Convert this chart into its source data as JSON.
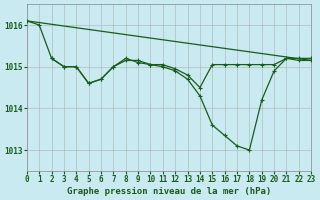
{
  "title": "Graphe pression niveau de la mer (hPa)",
  "background_color": "#c8eaf0",
  "grid_color": "#aaaaaa",
  "line_color": "#1a5c1a",
  "marker_color": "#1a5c1a",
  "xlim": [
    0,
    23
  ],
  "ylim": [
    1012.5,
    1016.5
  ],
  "yticks": [
    1013,
    1014,
    1015,
    1016
  ],
  "xticks": [
    0,
    1,
    2,
    3,
    4,
    5,
    6,
    7,
    8,
    9,
    10,
    11,
    12,
    13,
    14,
    15,
    16,
    17,
    18,
    19,
    20,
    21,
    22,
    23
  ],
  "series": [
    {
      "x": [
        0,
        1,
        2,
        3,
        4,
        5,
        6,
        7,
        8,
        9,
        10,
        11,
        12,
        13,
        14,
        15,
        16,
        17,
        18,
        19,
        20,
        21,
        22,
        23
      ],
      "y": [
        1016.1,
        1016.0,
        1015.2,
        1015.0,
        1015.0,
        1014.6,
        1014.7,
        1015.0,
        1015.2,
        1015.1,
        1015.05,
        1015.0,
        1014.9,
        1014.7,
        1014.3,
        1013.6,
        1013.35,
        1013.1,
        1013.0,
        1014.2,
        1014.9,
        1015.2,
        1015.2,
        1015.2
      ]
    },
    {
      "x": [
        2,
        3,
        4,
        5,
        6,
        7,
        8,
        9,
        10,
        11,
        12,
        13,
        14,
        15,
        16,
        17,
        18,
        19,
        20,
        21,
        22,
        23
      ],
      "y": [
        1015.2,
        1015.0,
        1015.0,
        1014.6,
        1014.7,
        1015.0,
        1015.15,
        1015.15,
        1015.05,
        1015.05,
        1014.95,
        1014.8,
        1014.5,
        1015.05,
        1015.05,
        1015.05,
        1015.05,
        1015.05,
        1015.05,
        1015.2,
        1015.15,
        1015.15
      ]
    },
    {
      "x": [
        0,
        23
      ],
      "y": [
        1016.1,
        1015.15
      ]
    }
  ]
}
